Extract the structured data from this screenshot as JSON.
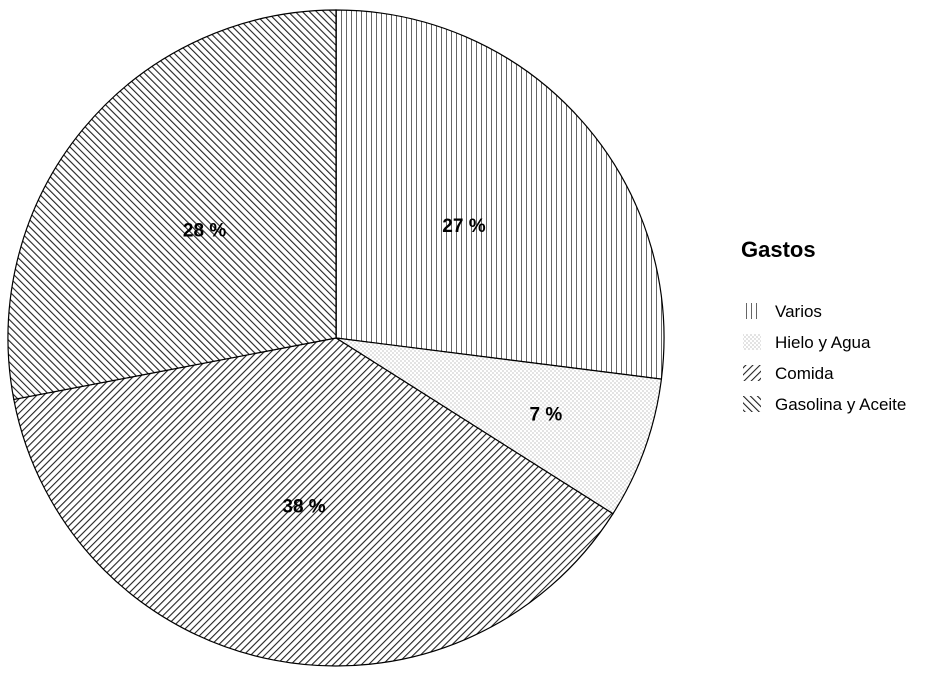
{
  "chart_data": {
    "type": "pie",
    "legend_title": "Gastos",
    "legend_position": "right",
    "slices": [
      {
        "name": "Varios",
        "value": 27,
        "label": "27 %",
        "pattern": "vertical-lines"
      },
      {
        "name": "Hielo y Agua",
        "value": 7,
        "label": "7 %",
        "pattern": "dots"
      },
      {
        "name": "Comida",
        "value": 38,
        "label": "38 %",
        "pattern": "diagonal-down"
      },
      {
        "name": "Gasolina y Aceite",
        "value": 28,
        "label": "28 %",
        "pattern": "diagonal-up"
      }
    ]
  }
}
